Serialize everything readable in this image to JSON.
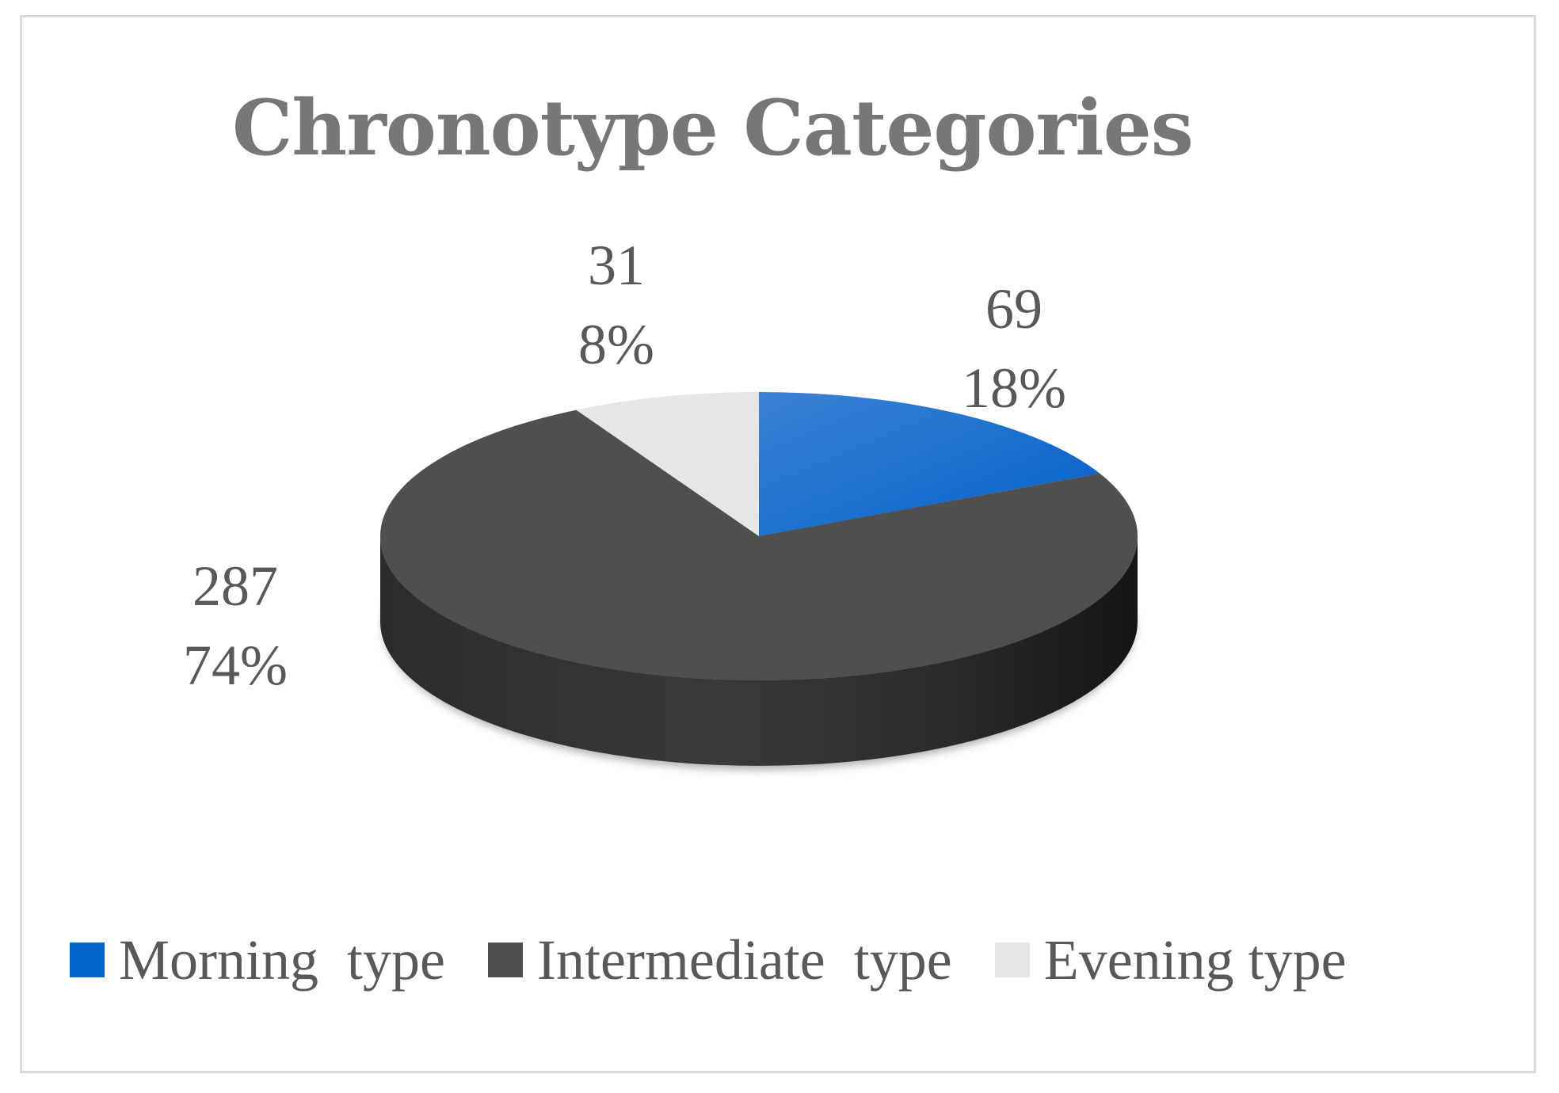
{
  "chart_data": {
    "type": "pie",
    "title": "Chronotype Categories",
    "categories": [
      "Morning  type",
      "Intermediate  type",
      "Evening type"
    ],
    "values": [
      69,
      287,
      31
    ],
    "percent_labels": [
      "18%",
      "74%",
      "8%"
    ],
    "colors": [
      "#0066cc",
      "#4f4f4f",
      "#e6e6e6"
    ],
    "legend_position": "bottom",
    "style": "3d"
  }
}
